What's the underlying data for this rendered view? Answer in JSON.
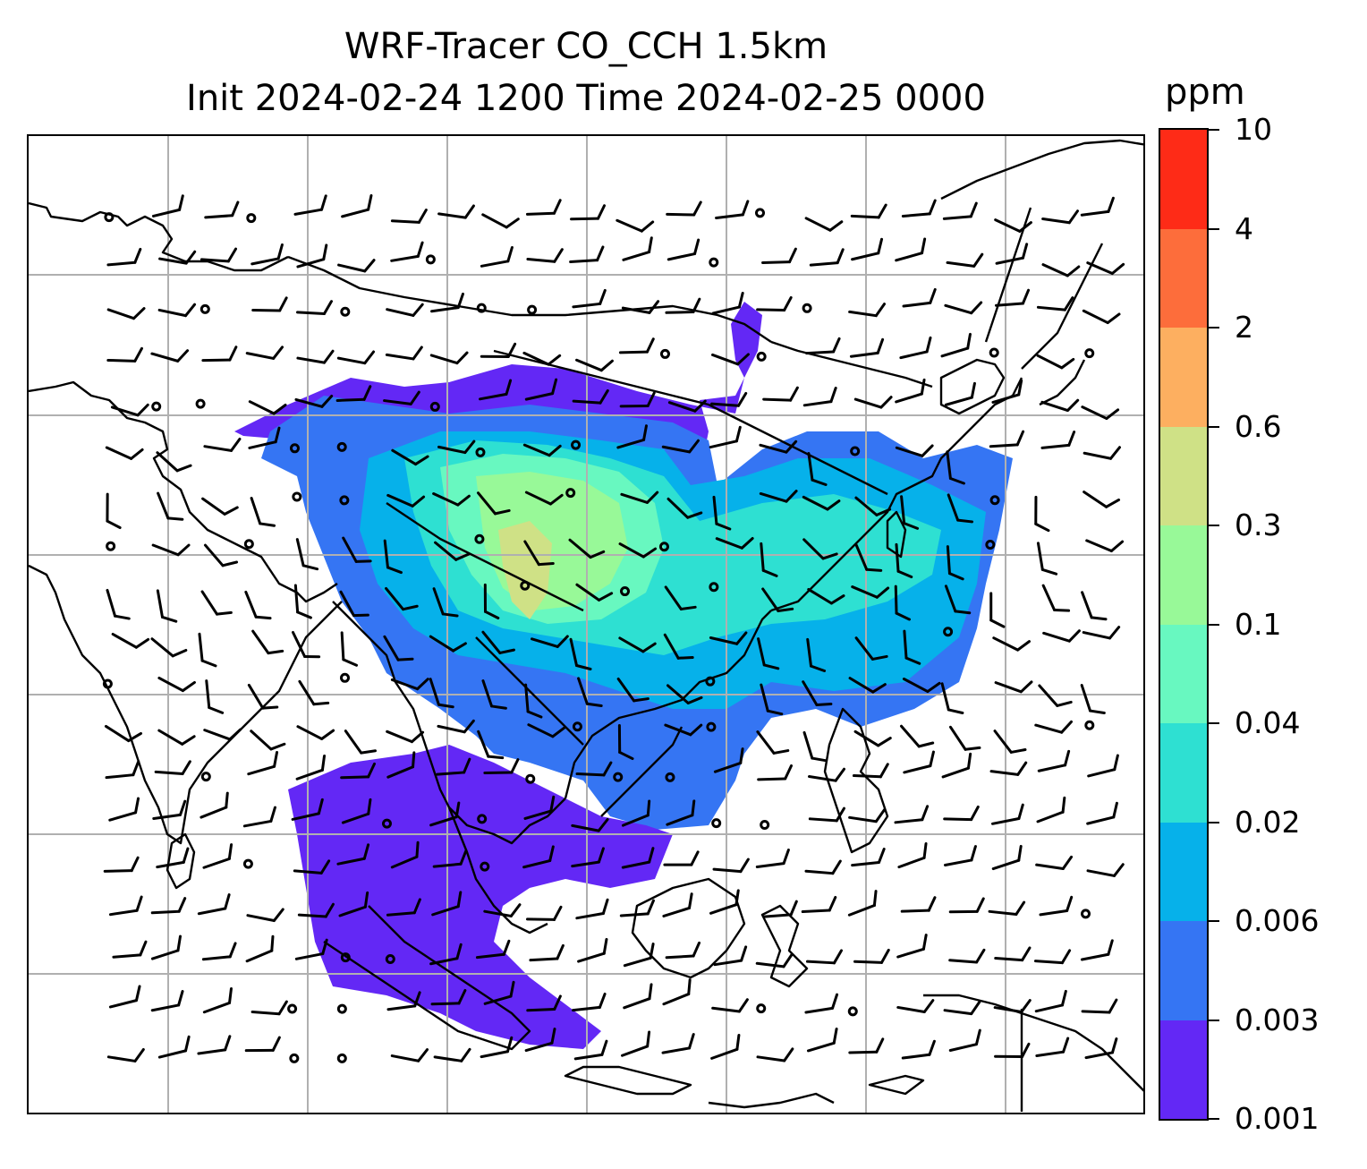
{
  "title": {
    "line1": "WRF-Tracer CO_CCH 1.5km",
    "line2": "Init 2024-02-24 1200 Time 2024-02-25 0000"
  },
  "colorbar": {
    "unit": "ppm",
    "ticks": [
      "0.001",
      "0.003",
      "0.006",
      "0.02",
      "0.04",
      "0.1",
      "0.3",
      "0.6",
      "2",
      "4",
      "10"
    ],
    "colors": [
      "#6328f5",
      "#3575f3",
      "#06b1ea",
      "#2ee0d2",
      "#68f8c0",
      "#98f998",
      "#cfe186",
      "#fdaf60",
      "#fd6d3b",
      "#fe2b17"
    ]
  },
  "map": {
    "gridlines": true,
    "grid_color": "#b0b0b0",
    "coast_color": "#000000"
  }
}
